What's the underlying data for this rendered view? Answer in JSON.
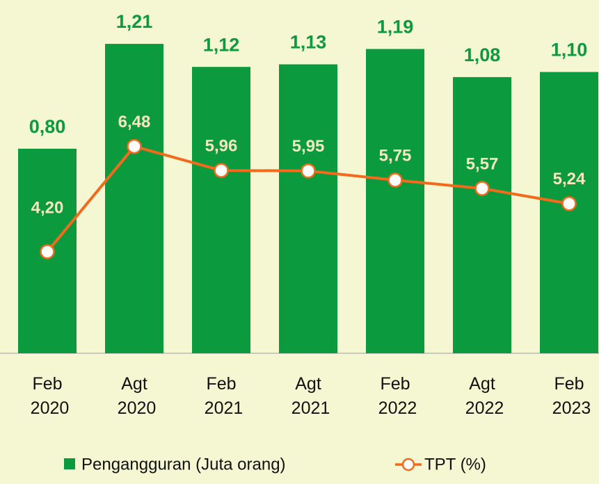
{
  "chart_data": {
    "type": "bar_line",
    "categories": [
      "Feb 2020",
      "Agt 2020",
      "Feb 2021",
      "Agt 2021",
      "Feb 2022",
      "Agt 2022",
      "Feb 2023"
    ],
    "series": [
      {
        "name": "Pengangguran (Juta orang)",
        "type": "bar",
        "color": "#0c9a3e",
        "values": [
          0.8,
          1.21,
          1.12,
          1.13,
          1.19,
          1.08,
          1.1
        ],
        "value_labels": [
          "0,80",
          "1,21",
          "1,12",
          "1,13",
          "1,19",
          "1,08",
          "1,10"
        ]
      },
      {
        "name": "TPT (%)",
        "type": "line",
        "axis": "y2",
        "color": "#f26a1b",
        "values": [
          4.2,
          6.48,
          5.96,
          5.95,
          5.75,
          5.57,
          5.24
        ],
        "value_labels": [
          "4,20",
          "6,48",
          "5,96",
          "5,95",
          "5,75",
          "5,57",
          "5,24"
        ]
      }
    ],
    "ylim": [
      0,
      1.3
    ],
    "y2lim": [
      2,
      9.2
    ]
  }
}
